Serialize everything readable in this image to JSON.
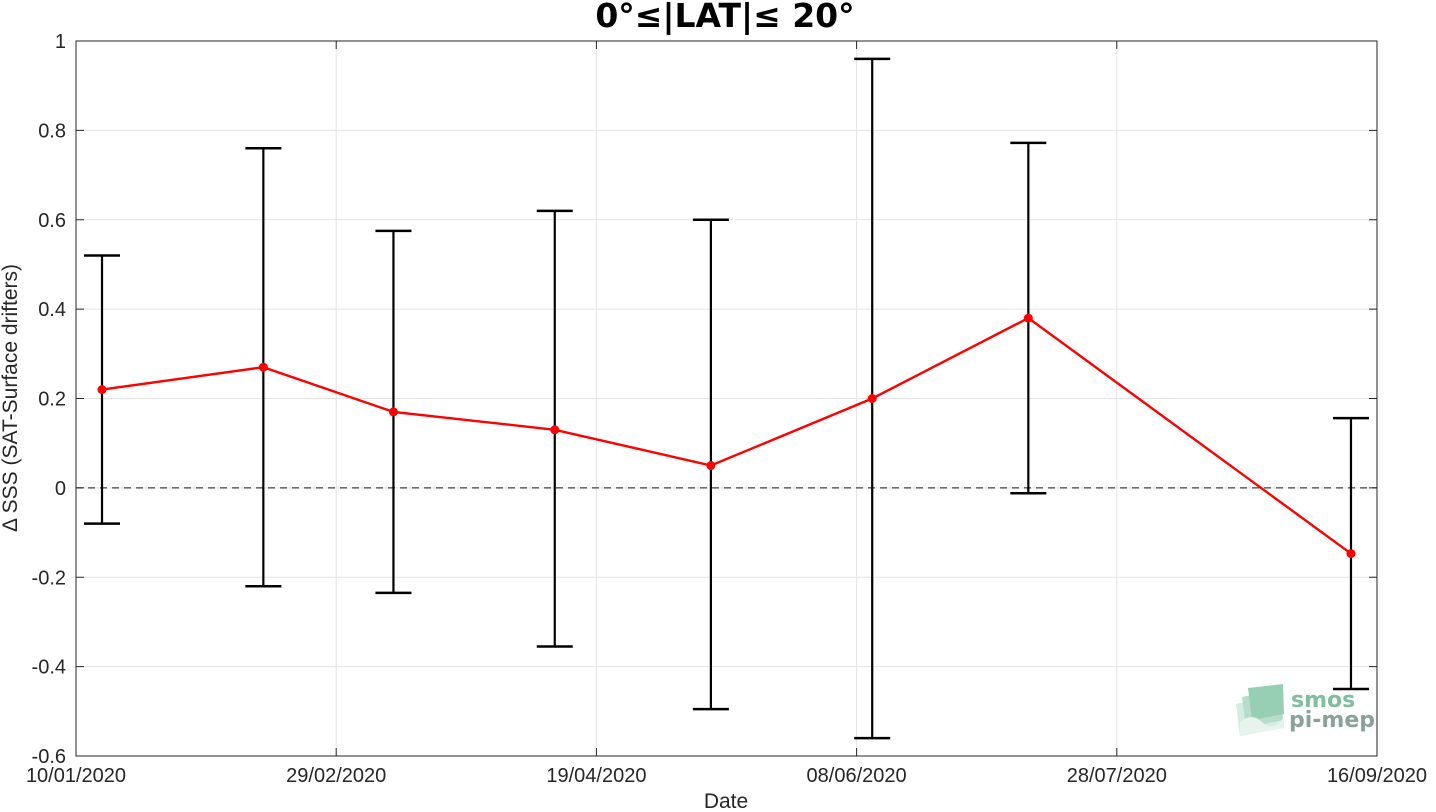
{
  "chart_data": {
    "type": "line",
    "title": "0°≤|LAT|≤ 20°",
    "xlabel": "Date",
    "ylabel": "Δ SSS (SAT-Surface drifters)",
    "x_ticks": [
      "10/01/2020",
      "29/02/2020",
      "19/04/2020",
      "08/06/2020",
      "28/07/2020",
      "16/09/2020"
    ],
    "x_tick_days": [
      0,
      50,
      100,
      150,
      200,
      250
    ],
    "xlim_days": [
      0,
      250
    ],
    "ylim": [
      -0.6,
      1
    ],
    "y_ticks": [
      -0.6,
      -0.4,
      -0.2,
      0,
      0.2,
      0.4,
      0.6,
      0.8,
      1
    ],
    "y_tick_labels": [
      "-0.6",
      "-0.4",
      "-0.2",
      "0",
      "0.2",
      "0.4",
      "0.6",
      "0.8",
      "1"
    ],
    "grid": true,
    "reference_line": 0,
    "series": [
      {
        "color": "#ff0000",
        "points": [
          {
            "day": 5,
            "mean": 0.22,
            "lower": -0.08,
            "upper": 0.52
          },
          {
            "day": 36,
            "mean": 0.27,
            "lower": -0.22,
            "upper": 0.76
          },
          {
            "day": 61,
            "mean": 0.17,
            "lower": -0.235,
            "upper": 0.575
          },
          {
            "day": 92,
            "mean": 0.13,
            "lower": -0.355,
            "upper": 0.62
          },
          {
            "day": 122,
            "mean": 0.05,
            "lower": -0.495,
            "upper": 0.6
          },
          {
            "day": 153,
            "mean": 0.2,
            "lower": -0.56,
            "upper": 0.96
          },
          {
            "day": 183,
            "mean": 0.38,
            "lower": -0.012,
            "upper": 0.772
          },
          {
            "day": 245,
            "mean": -0.147,
            "lower": -0.45,
            "upper": 0.156
          }
        ]
      }
    ]
  },
  "logo": {
    "line1": "smos",
    "line2": "pi-mep"
  }
}
